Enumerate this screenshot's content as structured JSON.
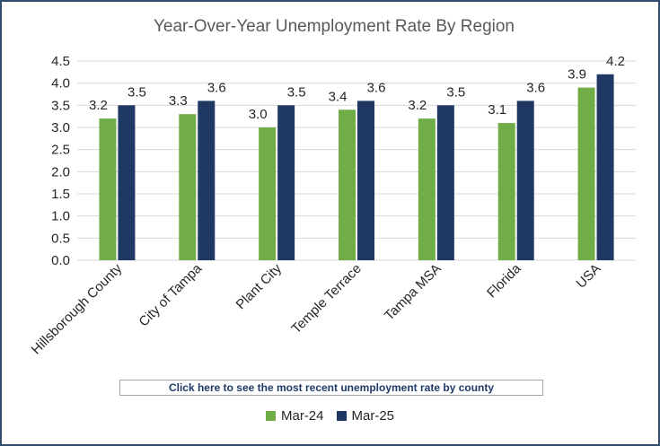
{
  "chart_data": {
    "type": "bar",
    "title": "Year-Over-Year Unemployment Rate By Region",
    "categories": [
      "Hillsborough County",
      "City of Tampa",
      "Plant City",
      "Temple Terrace",
      "Tampa MSA",
      "Florida",
      "USA"
    ],
    "series": [
      {
        "name": "Mar-24",
        "color": "#70ad47",
        "values": [
          3.2,
          3.3,
          3.0,
          3.4,
          3.2,
          3.1,
          3.9
        ]
      },
      {
        "name": "Mar-25",
        "color": "#1f3864",
        "values": [
          3.5,
          3.6,
          3.5,
          3.6,
          3.5,
          3.6,
          4.2
        ]
      }
    ],
    "ylim": [
      0,
      4.5
    ],
    "yticks": [
      "0.0",
      "0.5",
      "1.0",
      "1.5",
      "2.0",
      "2.5",
      "3.0",
      "3.5",
      "4.0",
      "4.5"
    ],
    "grid": true,
    "legend": "bottom-center"
  },
  "link": {
    "label": "Click here to see the most recent unemployment rate by county"
  }
}
